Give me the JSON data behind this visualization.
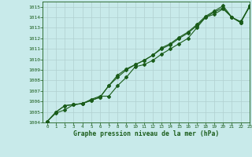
{
  "title": "Graphe pression niveau de la mer (hPa)",
  "bg_color": "#c8eaea",
  "grid_color": "#b0d0d0",
  "line_color": "#1a5c1a",
  "xlim": [
    -0.5,
    23
  ],
  "ylim": [
    1004,
    1015.5
  ],
  "yticks": [
    1004,
    1005,
    1006,
    1007,
    1008,
    1009,
    1010,
    1011,
    1012,
    1013,
    1014,
    1015
  ],
  "xticks": [
    0,
    1,
    2,
    3,
    4,
    5,
    6,
    7,
    8,
    9,
    10,
    11,
    12,
    13,
    14,
    15,
    16,
    17,
    18,
    19,
    20,
    21,
    22,
    23
  ],
  "series1": [
    1004.1,
    1004.9,
    1005.2,
    1005.7,
    1005.8,
    1006.2,
    1006.5,
    1006.5,
    1007.5,
    1008.3,
    1009.3,
    1009.5,
    1009.9,
    1010.5,
    1011.0,
    1011.5,
    1012.0,
    1013.0,
    1014.0,
    1014.3,
    1014.8,
    1014.0,
    1013.6,
    1015.0
  ],
  "series2": [
    1004.1,
    1005.0,
    1005.6,
    1005.7,
    1005.8,
    1006.1,
    1006.4,
    1007.5,
    1008.3,
    1009.0,
    1009.5,
    1009.9,
    1010.4,
    1011.0,
    1011.4,
    1012.0,
    1012.5,
    1013.2,
    1014.0,
    1014.5,
    1014.9,
    1014.0,
    1013.5,
    1015.0
  ],
  "series3": [
    1004.1,
    1005.0,
    1005.6,
    1005.7,
    1005.8,
    1006.1,
    1006.4,
    1007.5,
    1008.5,
    1009.1,
    1009.5,
    1009.9,
    1010.4,
    1011.1,
    1011.5,
    1012.1,
    1012.6,
    1013.3,
    1014.1,
    1014.6,
    1015.1,
    1014.0,
    1013.5,
    1015.1
  ]
}
